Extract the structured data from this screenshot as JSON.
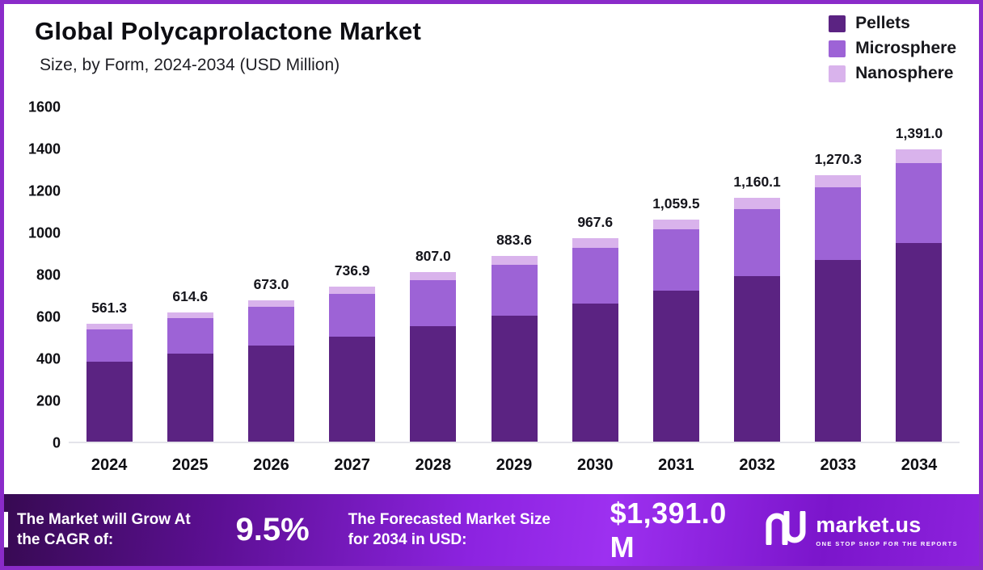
{
  "header": {
    "title": "Global Polycaprolactone Market",
    "subtitle": "Size, by Form, 2024-2034 (USD Million)"
  },
  "legend": [
    {
      "label": "Pellets",
      "color": "#5b2382"
    },
    {
      "label": "Microsphere",
      "color": "#9d63d6"
    },
    {
      "label": "Nanosphere",
      "color": "#d9b3ec"
    }
  ],
  "chart_data": {
    "type": "bar",
    "stacked": true,
    "title": "Global Polycaprolactone Market Size, by Form, 2024-2034 (USD Million)",
    "categories": [
      "2024",
      "2025",
      "2026",
      "2027",
      "2028",
      "2029",
      "2030",
      "2031",
      "2032",
      "2033",
      "2034"
    ],
    "series": [
      {
        "name": "Pellets",
        "color": "#5b2382",
        "values": [
          381.7,
          417.9,
          457.6,
          501.1,
          548.8,
          600.8,
          658.0,
          720.5,
          788.9,
          863.8,
          945.9
        ]
      },
      {
        "name": "Microsphere",
        "color": "#9d63d6",
        "values": [
          154.4,
          169.0,
          185.1,
          202.6,
          221.9,
          243.0,
          266.1,
          291.4,
          319.0,
          349.3,
          382.5
        ]
      },
      {
        "name": "Nanosphere",
        "color": "#d9b3ec",
        "values": [
          25.2,
          27.7,
          30.3,
          33.2,
          36.3,
          39.8,
          43.5,
          47.6,
          52.2,
          57.2,
          62.6
        ]
      }
    ],
    "totals": [
      561.3,
      614.6,
      673.0,
      736.9,
      807.0,
      883.6,
      967.6,
      1059.5,
      1160.1,
      1270.3,
      1391.0
    ],
    "total_labels": [
      "561.3",
      "614.6",
      "673.0",
      "736.9",
      "807.0",
      "883.6",
      "967.6",
      "1,059.5",
      "1,160.1",
      "1,270.3",
      "1,391.0"
    ],
    "xlabel": "",
    "ylabel": "",
    "ylim": [
      0,
      1600
    ],
    "yticks": [
      0,
      200,
      400,
      600,
      800,
      1000,
      1200,
      1400,
      1600
    ],
    "grid": false,
    "legend_position": "top-right"
  },
  "footer": {
    "cagr_label": "The Market will Grow At the CAGR of:",
    "cagr_value": "9.5%",
    "forecast_label": "The Forecasted Market Size for 2034 in USD:",
    "forecast_value": "$1,391.0 M",
    "brand": "market.us",
    "brand_tagline": "ONE STOP SHOP FOR THE REPORTS"
  }
}
